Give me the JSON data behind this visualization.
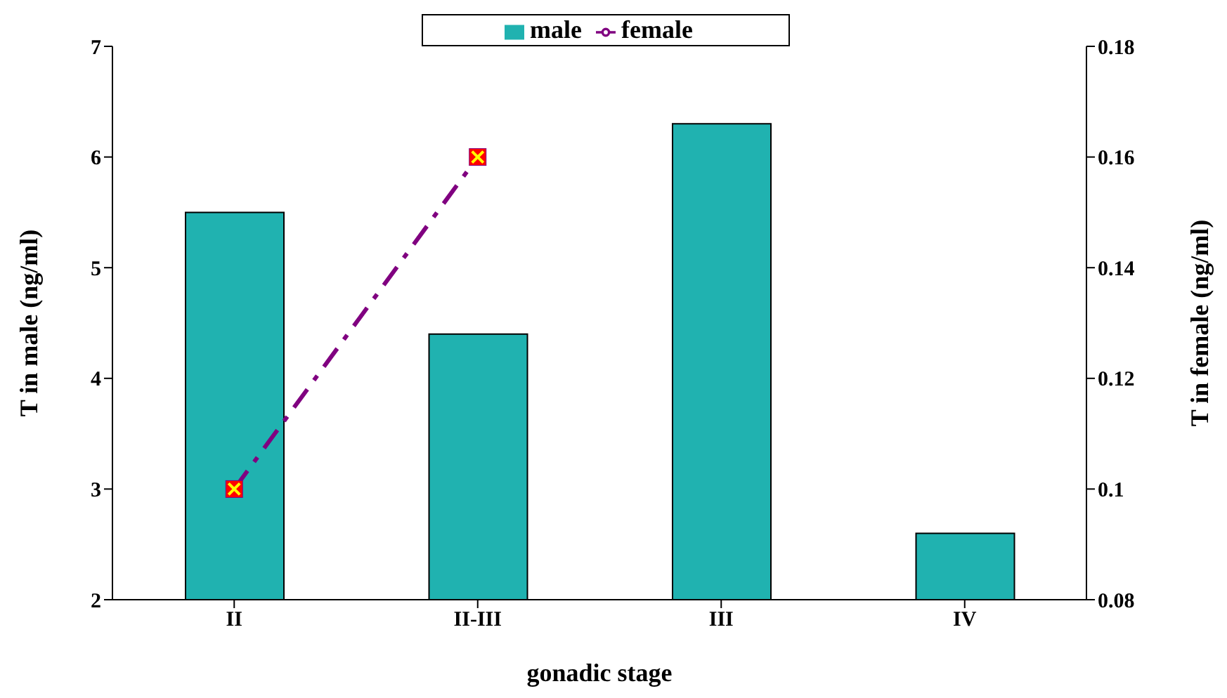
{
  "chart_data": {
    "type": "bar",
    "xlabel": "gonadic stage",
    "ylabel": "T  in  male (ng/ml)",
    "y2label": "T  in  female (ng/ml)",
    "categories": [
      "II",
      "II-III",
      "III",
      "IV"
    ],
    "series": [
      {
        "name": "male",
        "color": "#20b2b0",
        "values": [
          5.5,
          4.4,
          6.3,
          2.6
        ]
      },
      {
        "name": "female",
        "type": "line",
        "axis": "y2",
        "color": "#800080",
        "values": [
          0.1,
          0.16,
          null,
          null
        ],
        "marker": "square",
        "line_style": "dashed"
      }
    ],
    "ylim": [
      2,
      7
    ],
    "yticks": [
      2,
      3,
      4,
      5,
      6,
      7
    ],
    "y2lim": [
      0.08,
      0.18
    ],
    "y2ticks": [
      0.08,
      0.1,
      0.12,
      0.14,
      0.16,
      0.18
    ],
    "grid": false,
    "legend": "top"
  }
}
